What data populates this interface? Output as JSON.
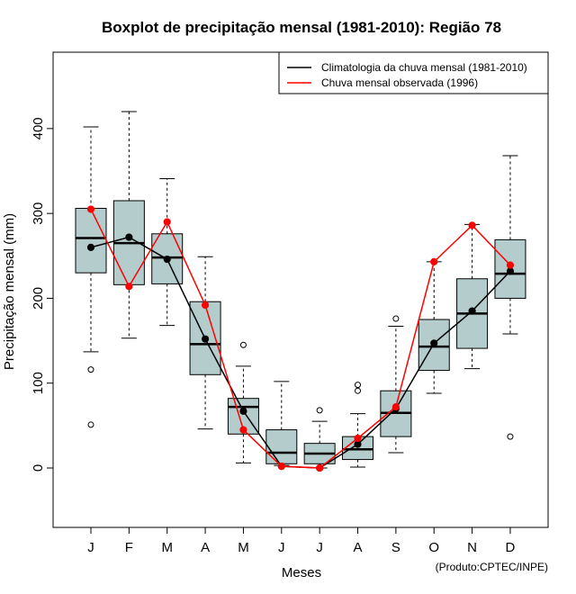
{
  "chart_data": {
    "type": "boxplot",
    "title": "Boxplot de precipitação mensal (1981-2010): Região 78",
    "xlabel": "Meses",
    "ylabel": "Precipitação mensal (mm)",
    "ylim": [
      -70,
      490
    ],
    "yticks": [
      0,
      100,
      200,
      300,
      400
    ],
    "categories": [
      "J",
      "F",
      "M",
      "A",
      "M",
      "J",
      "J",
      "A",
      "S",
      "O",
      "N",
      "D"
    ],
    "boxes": [
      {
        "month": "J",
        "whisker_low": 137,
        "q1": 230,
        "median": 271,
        "q3": 306,
        "whisker_high": 402,
        "outliers": [
          116,
          51
        ]
      },
      {
        "month": "F",
        "whisker_low": 153,
        "q1": 216,
        "median": 265,
        "q3": 315,
        "whisker_high": 420,
        "outliers": []
      },
      {
        "month": "M",
        "whisker_low": 168,
        "q1": 217,
        "median": 248,
        "q3": 276,
        "whisker_high": 341,
        "outliers": []
      },
      {
        "month": "A",
        "whisker_low": 46,
        "q1": 110,
        "median": 146,
        "q3": 196,
        "whisker_high": 249,
        "outliers": []
      },
      {
        "month": "M",
        "whisker_low": 6,
        "q1": 40,
        "median": 72,
        "q3": 82,
        "whisker_high": 120,
        "outliers": [
          145
        ]
      },
      {
        "month": "J",
        "whisker_low": 3,
        "q1": 5,
        "median": 18,
        "q3": 45,
        "whisker_high": 102,
        "outliers": []
      },
      {
        "month": "J",
        "whisker_low": 0,
        "q1": 5,
        "median": 17,
        "q3": 29,
        "whisker_high": 55,
        "outliers": [
          68
        ]
      },
      {
        "month": "A",
        "whisker_low": 1,
        "q1": 10,
        "median": 22,
        "q3": 37,
        "whisker_high": 64,
        "outliers": [
          98,
          91
        ]
      },
      {
        "month": "S",
        "whisker_low": 18,
        "q1": 37,
        "median": 65,
        "q3": 91,
        "whisker_high": 167,
        "outliers": [
          176
        ]
      },
      {
        "month": "O",
        "whisker_low": 88,
        "q1": 115,
        "median": 143,
        "q3": 175,
        "whisker_high": 243,
        "outliers": []
      },
      {
        "month": "N",
        "whisker_low": 117,
        "q1": 141,
        "median": 182,
        "q3": 223,
        "whisker_high": 287,
        "outliers": []
      },
      {
        "month": "D",
        "whisker_low": 158,
        "q1": 200,
        "median": 229,
        "q3": 269,
        "whisker_high": 368,
        "outliers": [
          37
        ]
      }
    ],
    "series": [
      {
        "name": "Climatologia da chuva mensal (1981-2010)",
        "color": "#000000",
        "values": [
          260,
          272,
          246,
          152,
          67,
          2,
          0,
          28,
          70,
          147,
          185,
          232
        ]
      },
      {
        "name": "Chuva mensal observada (1996)",
        "color": "#ff0000",
        "values": [
          305,
          214,
          290,
          192,
          45,
          2,
          0,
          35,
          72,
          243,
          286,
          239
        ]
      }
    ],
    "box_fill": "#b4cccc",
    "legend_position": "top-right",
    "footer": "(Produto:CPTEC/INPE)"
  }
}
